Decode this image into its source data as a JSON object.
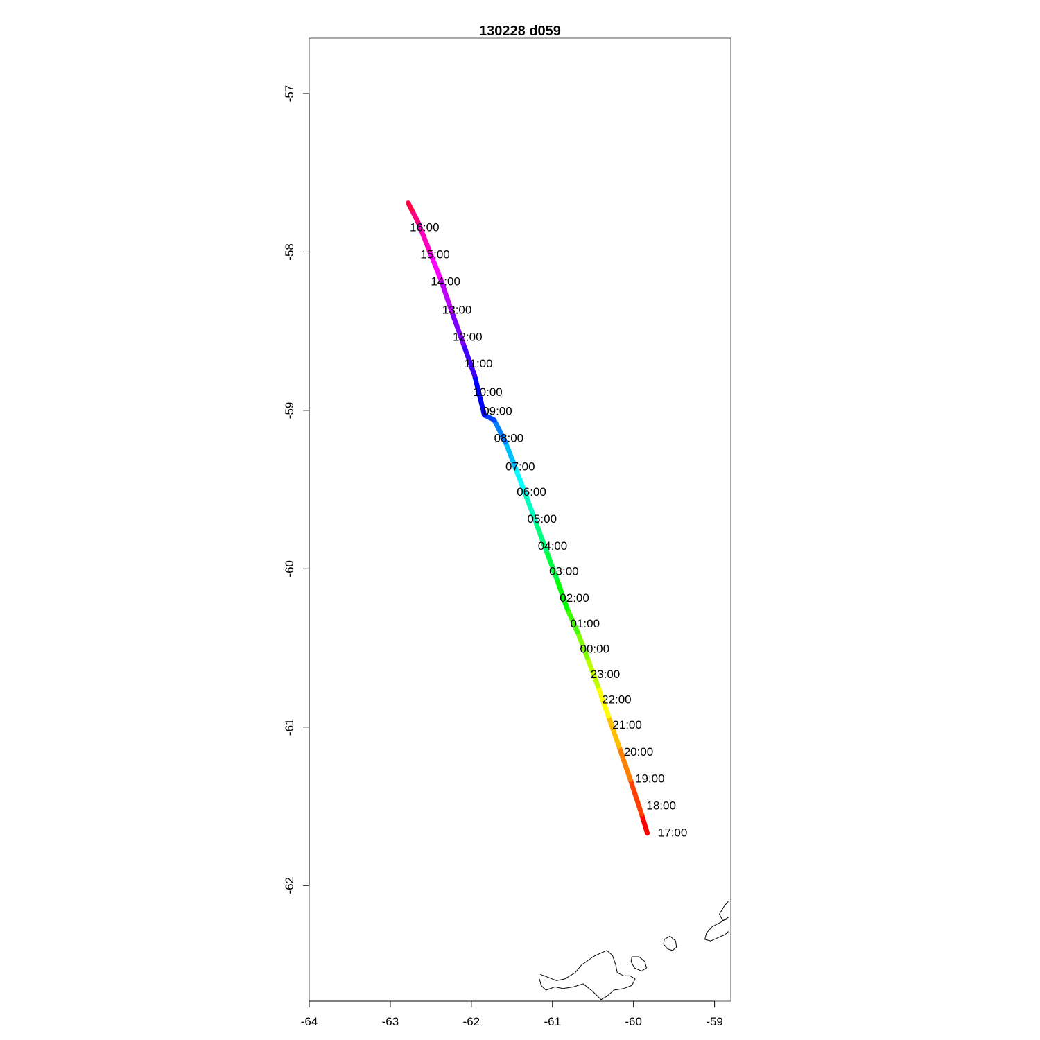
{
  "title": "130228   d059",
  "colors": {
    "frame": "#555555",
    "coastline": "#000000"
  },
  "chart_data": {
    "type": "line",
    "xlim": [
      -64,
      -58.8
    ],
    "ylim": [
      -62.73,
      -56.65
    ],
    "x_ticks": [
      -64,
      -63,
      -62,
      -61,
      -60,
      -59
    ],
    "y_ticks": [
      -57,
      -58,
      -59,
      -60,
      -61,
      -62
    ],
    "x_tick_labels": [
      "-64",
      "-63",
      "-62",
      "-61",
      "-60",
      "-59"
    ],
    "y_tick_labels": [
      "-57",
      "-58",
      "-59",
      "-60",
      "-61",
      "-62"
    ],
    "color_scale": "rainbow, red at start through yellow, green, cyan, blue, violet to red at end",
    "track": [
      {
        "lon": -59.83,
        "lat": -61.67
      },
      {
        "lon": -59.9,
        "lat": -61.55
      },
      {
        "lon": -60.04,
        "lat": -61.33
      },
      {
        "lon": -60.18,
        "lat": -61.12
      },
      {
        "lon": -60.31,
        "lat": -60.93
      },
      {
        "lon": -60.44,
        "lat": -60.74
      },
      {
        "lon": -60.57,
        "lat": -60.56
      },
      {
        "lon": -60.69,
        "lat": -60.4
      },
      {
        "lon": -60.82,
        "lat": -60.25
      },
      {
        "lon": -60.95,
        "lat": -60.06
      },
      {
        "lon": -61.08,
        "lat": -59.88
      },
      {
        "lon": -61.21,
        "lat": -59.7
      },
      {
        "lon": -61.34,
        "lat": -59.52
      },
      {
        "lon": -61.46,
        "lat": -59.36
      },
      {
        "lon": -61.58,
        "lat": -59.2
      },
      {
        "lon": -61.72,
        "lat": -59.06
      },
      {
        "lon": -61.84,
        "lat": -59.03
      },
      {
        "lon": -61.96,
        "lat": -58.78
      },
      {
        "lon": -62.1,
        "lat": -58.58
      },
      {
        "lon": -62.24,
        "lat": -58.38
      },
      {
        "lon": -62.38,
        "lat": -58.17
      },
      {
        "lon": -62.52,
        "lat": -57.99
      },
      {
        "lon": -62.66,
        "lat": -57.81
      },
      {
        "lon": -62.74,
        "lat": -57.73
      },
      {
        "lon": -62.78,
        "lat": -57.69
      }
    ],
    "time_labels": [
      {
        "text": "17:00",
        "lon": -59.7,
        "lat": -61.67
      },
      {
        "text": "18:00",
        "lon": -59.84,
        "lat": -61.5
      },
      {
        "text": "19:00",
        "lon": -59.98,
        "lat": -61.33
      },
      {
        "text": "20:00",
        "lon": -60.12,
        "lat": -61.16
      },
      {
        "text": "21:00",
        "lon": -60.26,
        "lat": -60.99
      },
      {
        "text": "22:00",
        "lon": -60.39,
        "lat": -60.83
      },
      {
        "text": "23:00",
        "lon": -60.53,
        "lat": -60.67
      },
      {
        "text": "00:00",
        "lon": -60.66,
        "lat": -60.51
      },
      {
        "text": "01:00",
        "lon": -60.78,
        "lat": -60.35
      },
      {
        "text": "02:00",
        "lon": -60.91,
        "lat": -60.19
      },
      {
        "text": "03:00",
        "lon": -61.04,
        "lat": -60.02
      },
      {
        "text": "04:00",
        "lon": -61.18,
        "lat": -59.86
      },
      {
        "text": "05:00",
        "lon": -61.31,
        "lat": -59.69
      },
      {
        "text": "06:00",
        "lon": -61.44,
        "lat": -59.52
      },
      {
        "text": "07:00",
        "lon": -61.58,
        "lat": -59.36
      },
      {
        "text": "08:00",
        "lon": -61.72,
        "lat": -59.18
      },
      {
        "text": "09:00",
        "lon": -61.86,
        "lat": -59.01
      },
      {
        "text": "10:00",
        "lon": -61.98,
        "lat": -58.89
      },
      {
        "text": "11:00",
        "lon": -62.09,
        "lat": -58.71
      },
      {
        "text": "12:00",
        "lon": -62.23,
        "lat": -58.54
      },
      {
        "text": "13:00",
        "lon": -62.36,
        "lat": -58.37
      },
      {
        "text": "14:00",
        "lon": -62.5,
        "lat": -58.19
      },
      {
        "text": "15:00",
        "lon": -62.63,
        "lat": -58.02
      },
      {
        "text": "16:00",
        "lon": -62.76,
        "lat": -57.85
      }
    ],
    "coastline": [
      [
        {
          "lon": -61.15,
          "lat": -62.56
        },
        {
          "lon": -61.05,
          "lat": -62.58
        },
        {
          "lon": -60.95,
          "lat": -62.6
        },
        {
          "lon": -60.85,
          "lat": -62.59
        },
        {
          "lon": -60.72,
          "lat": -62.55
        },
        {
          "lon": -60.64,
          "lat": -62.5
        },
        {
          "lon": -60.58,
          "lat": -62.48
        },
        {
          "lon": -60.5,
          "lat": -62.45
        },
        {
          "lon": -60.42,
          "lat": -62.43
        },
        {
          "lon": -60.33,
          "lat": -62.41
        },
        {
          "lon": -60.26,
          "lat": -62.44
        },
        {
          "lon": -60.22,
          "lat": -62.5
        },
        {
          "lon": -60.2,
          "lat": -62.55
        },
        {
          "lon": -60.12,
          "lat": -62.57
        },
        {
          "lon": -60.04,
          "lat": -62.57
        },
        {
          "lon": -59.98,
          "lat": -62.59
        },
        {
          "lon": -60.02,
          "lat": -62.63
        },
        {
          "lon": -60.12,
          "lat": -62.65
        },
        {
          "lon": -60.24,
          "lat": -62.66
        },
        {
          "lon": -60.33,
          "lat": -62.7
        },
        {
          "lon": -60.4,
          "lat": -62.72
        },
        {
          "lon": -60.5,
          "lat": -62.67
        },
        {
          "lon": -60.62,
          "lat": -62.62
        },
        {
          "lon": -60.74,
          "lat": -62.64
        },
        {
          "lon": -60.87,
          "lat": -62.65
        },
        {
          "lon": -60.97,
          "lat": -62.64
        },
        {
          "lon": -61.08,
          "lat": -62.66
        },
        {
          "lon": -61.14,
          "lat": -62.63
        },
        {
          "lon": -61.16,
          "lat": -62.59
        }
      ],
      [
        {
          "lon": -60.02,
          "lat": -62.45
        },
        {
          "lon": -59.93,
          "lat": -62.45
        },
        {
          "lon": -59.86,
          "lat": -62.48
        },
        {
          "lon": -59.84,
          "lat": -62.52
        },
        {
          "lon": -59.9,
          "lat": -62.54
        },
        {
          "lon": -59.99,
          "lat": -62.52
        },
        {
          "lon": -60.03,
          "lat": -62.48
        },
        {
          "lon": -60.02,
          "lat": -62.45
        }
      ],
      [
        {
          "lon": -59.62,
          "lat": -62.34
        },
        {
          "lon": -59.55,
          "lat": -62.32
        },
        {
          "lon": -59.48,
          "lat": -62.35
        },
        {
          "lon": -59.47,
          "lat": -62.39
        },
        {
          "lon": -59.52,
          "lat": -62.41
        },
        {
          "lon": -59.58,
          "lat": -62.4
        },
        {
          "lon": -59.63,
          "lat": -62.37
        },
        {
          "lon": -59.62,
          "lat": -62.34
        }
      ],
      [
        {
          "lon": -58.83,
          "lat": -62.2
        },
        {
          "lon": -58.92,
          "lat": -62.23
        },
        {
          "lon": -59.03,
          "lat": -62.26
        },
        {
          "lon": -59.1,
          "lat": -62.3
        },
        {
          "lon": -59.12,
          "lat": -62.34
        },
        {
          "lon": -59.05,
          "lat": -62.35
        },
        {
          "lon": -58.96,
          "lat": -62.33
        },
        {
          "lon": -58.87,
          "lat": -62.31
        },
        {
          "lon": -58.83,
          "lat": -62.29
        }
      ],
      [
        {
          "lon": -58.83,
          "lat": -62.1
        },
        {
          "lon": -58.88,
          "lat": -62.13
        },
        {
          "lon": -58.94,
          "lat": -62.18
        },
        {
          "lon": -58.9,
          "lat": -62.22
        },
        {
          "lon": -58.83,
          "lat": -62.21
        }
      ]
    ]
  }
}
